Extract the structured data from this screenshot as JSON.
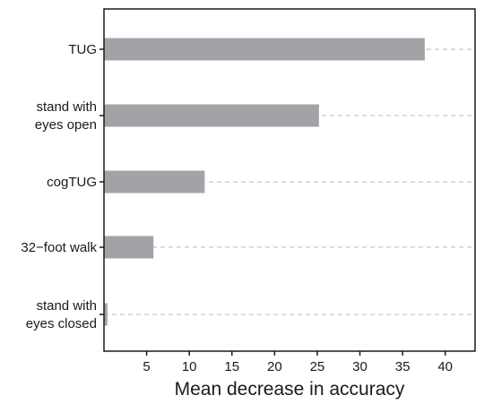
{
  "chart_data": {
    "type": "bar",
    "orientation": "horizontal",
    "categories": [
      "TUG",
      "stand with\neyes open",
      "cogTUG",
      "32−foot walk",
      "stand with\neyes closed"
    ],
    "values": [
      37.6,
      25.2,
      11.8,
      5.8,
      0.4
    ],
    "xlabel": "Mean decrease in accuracy",
    "ylabel": "",
    "title": "",
    "xlim": [
      0,
      43.5
    ],
    "xticks": [
      5,
      10,
      15,
      20,
      25,
      30,
      35,
      40
    ],
    "grid": "dashed horizontal guide per category",
    "legend": "none",
    "bar_color": "#a3a2a6",
    "guide_color": "#c8c8c8"
  }
}
